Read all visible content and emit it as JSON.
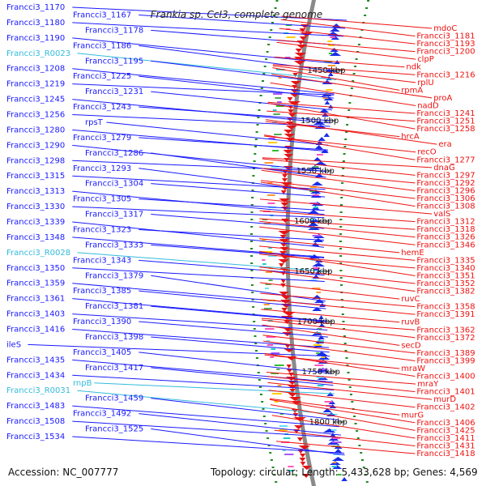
{
  "title": "Frankia sp. CcI3, complete genome",
  "footer": {
    "accession": "Accession: NC_007777",
    "topology": "Topology: circular; Length: 5,433,628 bp; Genes: 4,569"
  },
  "colors": {
    "left_gene": "#1a1aff",
    "left_rna": "#33bbdd",
    "right_gene": "#ee1111",
    "ring_gray": "#8a8a8a",
    "forward_strand": "#1a2ee6",
    "reverse_strand": "#e61414",
    "tick_green": "#1f8a1f"
  },
  "scale_marks": [
    "1450 kbp",
    "1500 kbp",
    "1550 kbp",
    "1600 kbp",
    "1650 kbp",
    "1700 kbp",
    "1750 kbp",
    "1800 kbp"
  ],
  "left_labels": [
    {
      "text": "Francci3_1170",
      "kind": "gene"
    },
    {
      "text": "Francci3_1167",
      "kind": "gene"
    },
    {
      "text": "Francci3_1180",
      "kind": "gene"
    },
    {
      "text": "Francci3_1178",
      "kind": "gene"
    },
    {
      "text": "Francci3_1190",
      "kind": "gene"
    },
    {
      "text": "Francci3_1186",
      "kind": "gene"
    },
    {
      "text": "Francci3_R0023",
      "kind": "rna"
    },
    {
      "text": "Francci3_1195",
      "kind": "gene"
    },
    {
      "text": "Francci3_1208",
      "kind": "gene"
    },
    {
      "text": "Francci3_1225",
      "kind": "gene"
    },
    {
      "text": "Francci3_1219",
      "kind": "gene"
    },
    {
      "text": "Francci3_1231",
      "kind": "gene"
    },
    {
      "text": "Francci3_1245",
      "kind": "gene"
    },
    {
      "text": "Francci3_1243",
      "kind": "gene"
    },
    {
      "text": "Francci3_1256",
      "kind": "gene"
    },
    {
      "text": "rpsT",
      "kind": "gene"
    },
    {
      "text": "Francci3_1280",
      "kind": "gene"
    },
    {
      "text": "Francci3_1279",
      "kind": "gene"
    },
    {
      "text": "Francci3_1290",
      "kind": "gene"
    },
    {
      "text": "Francci3_1286",
      "kind": "gene"
    },
    {
      "text": "Francci3_1298",
      "kind": "gene"
    },
    {
      "text": "Francci3_1293",
      "kind": "gene"
    },
    {
      "text": "Francci3_1315",
      "kind": "gene"
    },
    {
      "text": "Francci3_1304",
      "kind": "gene"
    },
    {
      "text": "Francci3_1313",
      "kind": "gene"
    },
    {
      "text": "Francci3_1305",
      "kind": "gene"
    },
    {
      "text": "Francci3_1330",
      "kind": "gene"
    },
    {
      "text": "Francci3_1317",
      "kind": "gene"
    },
    {
      "text": "Francci3_1339",
      "kind": "gene"
    },
    {
      "text": "Francci3_1323",
      "kind": "gene"
    },
    {
      "text": "Francci3_1348",
      "kind": "gene"
    },
    {
      "text": "Francci3_1333",
      "kind": "gene"
    },
    {
      "text": "Francci3_R0028",
      "kind": "rna"
    },
    {
      "text": "Francci3_1343",
      "kind": "gene"
    },
    {
      "text": "Francci3_1350",
      "kind": "gene"
    },
    {
      "text": "Francci3_1379",
      "kind": "gene"
    },
    {
      "text": "Francci3_1359",
      "kind": "gene"
    },
    {
      "text": "Francci3_1385",
      "kind": "gene"
    },
    {
      "text": "Francci3_1361",
      "kind": "gene"
    },
    {
      "text": "Francci3_1381",
      "kind": "gene"
    },
    {
      "text": "Francci3_1403",
      "kind": "gene"
    },
    {
      "text": "Francci3_1390",
      "kind": "gene"
    },
    {
      "text": "Francci3_1416",
      "kind": "gene"
    },
    {
      "text": "Francci3_1398",
      "kind": "gene"
    },
    {
      "text": "ileS",
      "kind": "gene"
    },
    {
      "text": "Francci3_1405",
      "kind": "gene"
    },
    {
      "text": "Francci3_1435",
      "kind": "gene"
    },
    {
      "text": "Francci3_1417",
      "kind": "gene"
    },
    {
      "text": "Francci3_1434",
      "kind": "gene"
    },
    {
      "text": "rnpB",
      "kind": "rna"
    },
    {
      "text": "Francci3_R0031",
      "kind": "rna"
    },
    {
      "text": "Francci3_1459",
      "kind": "gene"
    },
    {
      "text": "Francci3_1483",
      "kind": "gene"
    },
    {
      "text": "Francci3_1492",
      "kind": "gene"
    },
    {
      "text": "Francci3_1508",
      "kind": "gene"
    },
    {
      "text": "Francci3_1525",
      "kind": "gene"
    },
    {
      "text": "Francci3_1534",
      "kind": "gene"
    }
  ],
  "right_labels": [
    {
      "text": "mdoC"
    },
    {
      "text": "Francci3_1181"
    },
    {
      "text": "Francci3_1193"
    },
    {
      "text": "Francci3_1200"
    },
    {
      "text": "clpP"
    },
    {
      "text": "ndk"
    },
    {
      "text": "Francci3_1216"
    },
    {
      "text": "rplU"
    },
    {
      "text": "rpmA"
    },
    {
      "text": "proA"
    },
    {
      "text": "nadD"
    },
    {
      "text": "Francci3_1241"
    },
    {
      "text": "Francci3_1251"
    },
    {
      "text": "Francci3_1258"
    },
    {
      "text": "hrcA"
    },
    {
      "text": "era"
    },
    {
      "text": "recO"
    },
    {
      "text": "Francci3_1277"
    },
    {
      "text": "dnaG"
    },
    {
      "text": "Francci3_1297"
    },
    {
      "text": "Francci3_1292"
    },
    {
      "text": "Francci3_1296"
    },
    {
      "text": "Francci3_1306"
    },
    {
      "text": "Francci3_1308"
    },
    {
      "text": "valS"
    },
    {
      "text": "Francci3_1312"
    },
    {
      "text": "Francci3_1318"
    },
    {
      "text": "Francci3_1326"
    },
    {
      "text": "Francci3_1346"
    },
    {
      "text": "hemE"
    },
    {
      "text": "Francci3_1335"
    },
    {
      "text": "Francci3_1340"
    },
    {
      "text": "Francci3_1351"
    },
    {
      "text": "Francci3_1352"
    },
    {
      "text": "Francci3_1382"
    },
    {
      "text": "ruvC"
    },
    {
      "text": "Francci3_1358"
    },
    {
      "text": "Francci3_1391"
    },
    {
      "text": "ruvB"
    },
    {
      "text": "Francci3_1362"
    },
    {
      "text": "Francci3_1372"
    },
    {
      "text": "secD"
    },
    {
      "text": "Francci3_1389"
    },
    {
      "text": "Francci3_1399"
    },
    {
      "text": "mraW"
    },
    {
      "text": "Francci3_1400"
    },
    {
      "text": "mraY"
    },
    {
      "text": "Francci3_1401"
    },
    {
      "text": "murD"
    },
    {
      "text": "Francci3_1402"
    },
    {
      "text": "murG"
    },
    {
      "text": "Francci3_1406"
    },
    {
      "text": "Francci3_1425"
    },
    {
      "text": "Francci3_1411"
    },
    {
      "text": "Francci3_1431"
    },
    {
      "text": "Francci3_1418"
    }
  ]
}
